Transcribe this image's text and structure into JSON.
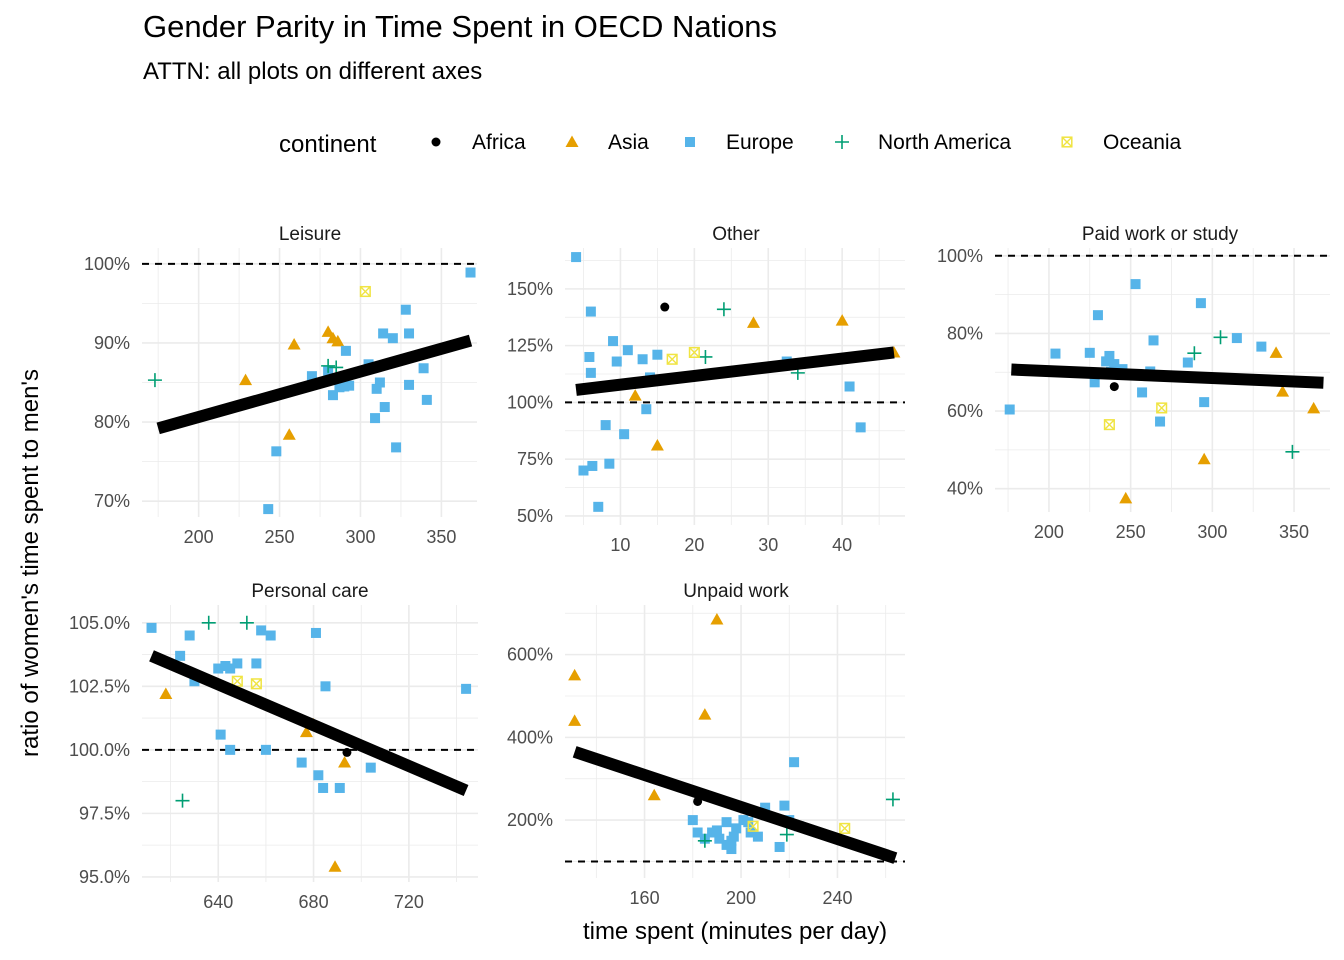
{
  "title": "Gender Parity in Time Spent in OECD Nations",
  "subtitle": "ATTN: all plots on different axes",
  "xlabel": "time spent (minutes per day)",
  "ylabel": "ratio of women's time spent to men's",
  "legend": {
    "title": "continent",
    "placement": "top",
    "items": [
      {
        "label": "Africa",
        "shape": "circle",
        "color": "#000000"
      },
      {
        "label": "Asia",
        "shape": "triangle",
        "color": "#E69F00"
      },
      {
        "label": "Europe",
        "shape": "square",
        "color": "#56B4E9"
      },
      {
        "label": "North America",
        "shape": "plus",
        "color": "#009E73"
      },
      {
        "label": "Oceania",
        "shape": "square-x",
        "color": "#F0E442"
      }
    ]
  },
  "colors": {
    "trend_line": "#000000",
    "reference_line": "#000000",
    "grid": "#EBEBEB"
  },
  "chart_data": [
    {
      "type": "scatter",
      "facet": "Leisure",
      "xlim": [
        165,
        372
      ],
      "ylim": [
        68,
        102
      ],
      "xticks": [
        200,
        250,
        300,
        350
      ],
      "yticks": [
        70,
        80,
        90,
        100
      ],
      "ytick_labels": [
        "70%",
        "80%",
        "90%",
        "100%"
      ],
      "reference_y": 100,
      "trend": [
        [
          175,
          79.2
        ],
        [
          368,
          90.3
        ]
      ],
      "points": {
        "Asia": [
          [
            229,
            85.3
          ],
          [
            256,
            78.4
          ],
          [
            259,
            89.8
          ],
          [
            280,
            91.4
          ],
          [
            283,
            90.6
          ],
          [
            286,
            90.2
          ]
        ],
        "Europe": [
          [
            243,
            69.0
          ],
          [
            248,
            76.3
          ],
          [
            270,
            85.8
          ],
          [
            280,
            86.5
          ],
          [
            283,
            83.4
          ],
          [
            287,
            84.4
          ],
          [
            290,
            84.5
          ],
          [
            291,
            89.0
          ],
          [
            293,
            84.6
          ],
          [
            305,
            87.3
          ],
          [
            309,
            80.5
          ],
          [
            310,
            84.2
          ],
          [
            312,
            85.0
          ],
          [
            314,
            91.2
          ],
          [
            315,
            81.9
          ],
          [
            320,
            90.6
          ],
          [
            322,
            76.8
          ],
          [
            328,
            94.2
          ],
          [
            330,
            84.7
          ],
          [
            330,
            91.2
          ],
          [
            339,
            86.8
          ],
          [
            341,
            82.8
          ],
          [
            368,
            98.9
          ]
        ],
        "North America": [
          [
            173,
            85.3
          ],
          [
            280,
            87.1
          ],
          [
            285,
            86.9
          ]
        ],
        "Oceania": [
          [
            303,
            96.5
          ]
        ]
      }
    },
    {
      "type": "scatter",
      "facet": "Other",
      "xlim": [
        2.5,
        48.5
      ],
      "ylim": [
        46,
        168
      ],
      "xticks": [
        10,
        20,
        30,
        40
      ],
      "yticks": [
        50,
        75,
        100,
        125,
        150
      ],
      "ytick_labels": [
        "50%",
        "75%",
        "100%",
        "125%",
        "150%"
      ],
      "reference_y": 100,
      "trend": [
        [
          4,
          105.5
        ],
        [
          47,
          122
        ]
      ],
      "points": {
        "Africa": [
          [
            16,
            142
          ]
        ],
        "Asia": [
          [
            12,
            103
          ],
          [
            15,
            81
          ],
          [
            28,
            135
          ],
          [
            40,
            136
          ],
          [
            47,
            122
          ]
        ],
        "Europe": [
          [
            4,
            164
          ],
          [
            5,
            70
          ],
          [
            5.8,
            120
          ],
          [
            6,
            113
          ],
          [
            6,
            140
          ],
          [
            6.2,
            72
          ],
          [
            7,
            54
          ],
          [
            8,
            90
          ],
          [
            8.5,
            73
          ],
          [
            9,
            127
          ],
          [
            9.5,
            118
          ],
          [
            10.5,
            86
          ],
          [
            11,
            123
          ],
          [
            13,
            119
          ],
          [
            13.5,
            97
          ],
          [
            14,
            111
          ],
          [
            15,
            121
          ],
          [
            32.5,
            118
          ],
          [
            41,
            107
          ],
          [
            42.5,
            89
          ]
        ],
        "North America": [
          [
            21.5,
            120
          ],
          [
            24,
            141
          ],
          [
            34,
            113
          ]
        ],
        "Oceania": [
          [
            17,
            119
          ],
          [
            20,
            122
          ]
        ]
      }
    },
    {
      "type": "scatter",
      "facet": "Paid work or study",
      "xlim": [
        167,
        372
      ],
      "ylim": [
        34,
        102
      ],
      "xticks": [
        200,
        250,
        300,
        350
      ],
      "yticks": [
        40,
        60,
        80,
        100
      ],
      "ytick_labels": [
        "40%",
        "60%",
        "80%",
        "100%"
      ],
      "reference_y": 100,
      "trend": [
        [
          177,
          70.7
        ],
        [
          368,
          67.3
        ]
      ],
      "points": {
        "Africa": [
          [
            240,
            66.3
          ]
        ],
        "Asia": [
          [
            247,
            37.5
          ],
          [
            295,
            47.6
          ],
          [
            339,
            75.0
          ],
          [
            343,
            65.0
          ],
          [
            362,
            60.7
          ]
        ],
        "Europe": [
          [
            176,
            60.4
          ],
          [
            204,
            74.8
          ],
          [
            225,
            75.0
          ],
          [
            228,
            67.4
          ],
          [
            230,
            84.7
          ],
          [
            235,
            72.8
          ],
          [
            237,
            74.2
          ],
          [
            238,
            70.1
          ],
          [
            240,
            72.1
          ],
          [
            245,
            70.8
          ],
          [
            253,
            92.7
          ],
          [
            257,
            64.8
          ],
          [
            262,
            70.2
          ],
          [
            264,
            78.2
          ],
          [
            268,
            57.3
          ],
          [
            285,
            72.5
          ],
          [
            293,
            87.8
          ],
          [
            295,
            62.3
          ],
          [
            315,
            78.8
          ],
          [
            330,
            76.6
          ]
        ],
        "North America": [
          [
            289,
            74.9
          ],
          [
            305,
            79.0
          ],
          [
            349,
            49.5
          ]
        ],
        "Oceania": [
          [
            237,
            56.5
          ],
          [
            269,
            60.8
          ]
        ]
      }
    },
    {
      "type": "scatter",
      "facet": "Personal care",
      "xlim": [
        608,
        749
      ],
      "ylim": [
        94.8,
        105.7
      ],
      "xticks": [
        640,
        680,
        720
      ],
      "yticks": [
        95.0,
        97.5,
        100.0,
        102.5,
        105.0
      ],
      "ytick_labels": [
        "95.0%",
        "97.5%",
        "100.0%",
        "102.5%",
        "105.0%"
      ],
      "reference_y": 100,
      "trend": [
        [
          612,
          103.7
        ],
        [
          744,
          98.4
        ]
      ],
      "points": {
        "Africa": [
          [
            694,
            99.9
          ]
        ],
        "Asia": [
          [
            618,
            102.2
          ],
          [
            677,
            100.7
          ],
          [
            680,
            101.0
          ],
          [
            689,
            95.4
          ],
          [
            693,
            99.5
          ]
        ],
        "Europe": [
          [
            612,
            104.8
          ],
          [
            624,
            103.7
          ],
          [
            628,
            104.5
          ],
          [
            630,
            102.7
          ],
          [
            640,
            103.2
          ],
          [
            641,
            100.6
          ],
          [
            643,
            103.3
          ],
          [
            645,
            100.0
          ],
          [
            645,
            103.2
          ],
          [
            648,
            103.4
          ],
          [
            656,
            103.4
          ],
          [
            658,
            104.7
          ],
          [
            660,
            100.0
          ],
          [
            662,
            104.5
          ],
          [
            675,
            99.5
          ],
          [
            681,
            104.6
          ],
          [
            682,
            99.0
          ],
          [
            684,
            98.5
          ],
          [
            685,
            102.5
          ],
          [
            691,
            98.5
          ],
          [
            704,
            99.3
          ],
          [
            744,
            102.4
          ]
        ],
        "North America": [
          [
            625,
            98.0
          ],
          [
            636,
            105.0
          ],
          [
            652,
            105.0
          ]
        ],
        "Oceania": [
          [
            648,
            102.7
          ],
          [
            656,
            102.6
          ]
        ]
      }
    },
    {
      "type": "scatter",
      "facet": "Unpaid work",
      "xlim": [
        127,
        268
      ],
      "ylim": [
        60,
        720
      ],
      "xticks": [
        160,
        200,
        240
      ],
      "yticks": [
        200,
        400,
        600
      ],
      "ytick_labels": [
        "200%",
        "400%",
        "600%"
      ],
      "reference_y": 100,
      "trend": [
        [
          131,
          365
        ],
        [
          264,
          108
        ]
      ],
      "points": {
        "Africa": [
          [
            182,
            245
          ]
        ],
        "Asia": [
          [
            131,
            550
          ],
          [
            131,
            440
          ],
          [
            164,
            260
          ],
          [
            185,
            455
          ],
          [
            190,
            685
          ]
        ],
        "Europe": [
          [
            180,
            200
          ],
          [
            182,
            170
          ],
          [
            185,
            155
          ],
          [
            188,
            170
          ],
          [
            190,
            175
          ],
          [
            191,
            155
          ],
          [
            194,
            140
          ],
          [
            194,
            195
          ],
          [
            196,
            130
          ],
          [
            196,
            150
          ],
          [
            197,
            160
          ],
          [
            198,
            180
          ],
          [
            201,
            200
          ],
          [
            203,
            195
          ],
          [
            204,
            170
          ],
          [
            207,
            160
          ],
          [
            210,
            230
          ],
          [
            216,
            135
          ],
          [
            218,
            235
          ],
          [
            220,
            200
          ],
          [
            222,
            340
          ],
          [
            224,
            185
          ]
        ],
        "North America": [
          [
            185,
            150
          ],
          [
            219,
            165
          ],
          [
            263,
            250
          ]
        ],
        "Oceania": [
          [
            205,
            185
          ],
          [
            243,
            180
          ]
        ]
      }
    }
  ]
}
